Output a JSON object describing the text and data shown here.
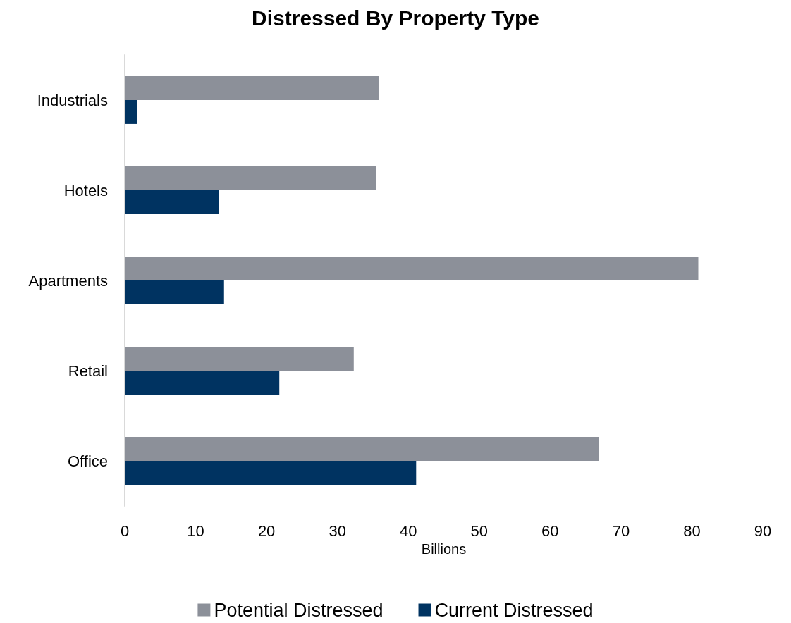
{
  "chart_data": {
    "type": "bar",
    "title": "Distressed By Property Type",
    "orientation": "horizontal",
    "xlabel": "Billions",
    "categories": [
      "Industrials",
      "Hotels",
      "Apartments",
      "Retail",
      "Office"
    ],
    "series": [
      {
        "name": "Potential Distressed",
        "color": "#8c9099",
        "values": [
          35.8,
          35.5,
          80.9,
          32.3,
          66.9
        ]
      },
      {
        "name": "Current Distressed",
        "color": "#003361",
        "values": [
          1.7,
          13.3,
          14.0,
          21.8,
          41.1
        ]
      }
    ],
    "xlim": [
      0,
      90
    ],
    "xticks": [
      0,
      10,
      20,
      30,
      40,
      50,
      60,
      70,
      80,
      90
    ],
    "grid": false,
    "legend": "bottom"
  }
}
